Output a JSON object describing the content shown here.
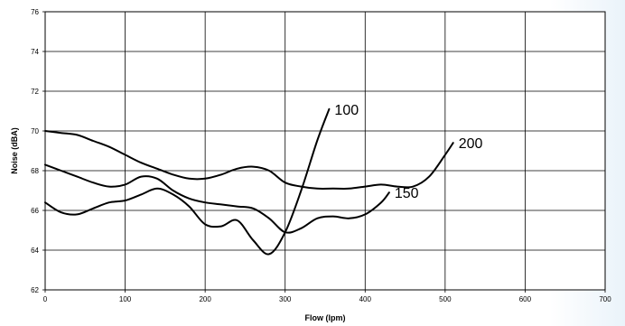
{
  "chart_data": {
    "type": "line",
    "title": "",
    "xlabel": "Flow (lpm)",
    "ylabel": "Noise (dBA)",
    "xlim": [
      0,
      700
    ],
    "ylim": [
      62,
      76
    ],
    "x_ticks": [
      0,
      100,
      200,
      300,
      400,
      500,
      600,
      700
    ],
    "y_ticks": [
      62,
      64,
      66,
      68,
      70,
      72,
      74,
      76
    ],
    "x_tick_labels": [
      "0",
      "100",
      "200",
      "300",
      "400",
      "500",
      "600",
      "700"
    ],
    "y_tick_labels": [
      "62",
      "64",
      "66",
      "68",
      "70",
      "72",
      "74",
      "76"
    ],
    "grid": true,
    "legend": "inline labels at line ends",
    "series": [
      {
        "name": "100",
        "color": "#000000",
        "x": [
          0,
          20,
          40,
          60,
          80,
          100,
          120,
          140,
          160,
          180,
          200,
          220,
          240,
          260,
          280,
          300,
          320,
          340,
          355
        ],
        "y": [
          66.4,
          65.9,
          65.8,
          66.1,
          66.4,
          66.5,
          66.8,
          67.1,
          66.8,
          66.2,
          65.3,
          65.2,
          65.5,
          64.5,
          63.8,
          64.9,
          67.0,
          69.5,
          71.1
        ]
      },
      {
        "name": "150",
        "color": "#000000",
        "x": [
          0,
          20,
          40,
          60,
          80,
          100,
          120,
          140,
          160,
          180,
          200,
          220,
          240,
          260,
          280,
          300,
          320,
          340,
          360,
          380,
          400,
          420,
          430
        ],
        "y": [
          68.3,
          68.0,
          67.7,
          67.4,
          67.2,
          67.3,
          67.7,
          67.6,
          67.0,
          66.6,
          66.4,
          66.3,
          66.2,
          66.1,
          65.6,
          64.9,
          65.1,
          65.6,
          65.7,
          65.6,
          65.8,
          66.4,
          66.9
        ]
      },
      {
        "name": "200",
        "color": "#000000",
        "x": [
          0,
          20,
          40,
          60,
          80,
          100,
          120,
          140,
          160,
          180,
          200,
          220,
          240,
          260,
          280,
          300,
          320,
          340,
          360,
          380,
          400,
          420,
          440,
          460,
          480,
          500,
          510
        ],
        "y": [
          70.0,
          69.9,
          69.8,
          69.5,
          69.2,
          68.8,
          68.4,
          68.1,
          67.8,
          67.6,
          67.6,
          67.8,
          68.1,
          68.2,
          68.0,
          67.4,
          67.2,
          67.1,
          67.1,
          67.1,
          67.2,
          67.3,
          67.2,
          67.2,
          67.7,
          68.8,
          69.4
        ]
      }
    ]
  }
}
